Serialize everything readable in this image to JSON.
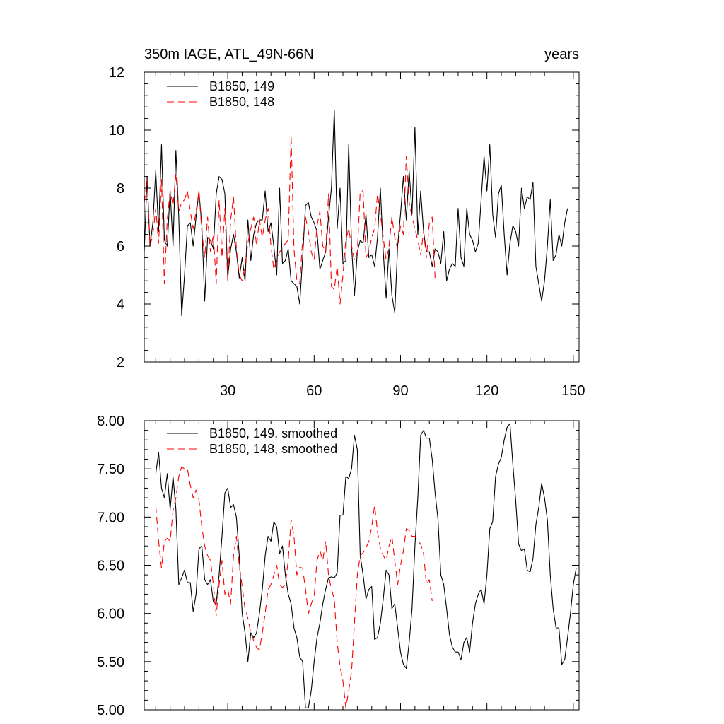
{
  "chart_data": [
    {
      "type": "line",
      "title": "350m IAGE, ATL_49N-66N",
      "units": "years",
      "xlabel": "",
      "ylabel": "",
      "xlim": [
        1,
        152
      ],
      "ylim": [
        2,
        12
      ],
      "xticks": [
        30,
        60,
        90,
        120,
        150
      ],
      "xtick_labels": [
        "30",
        "60",
        "90",
        "120",
        "150"
      ],
      "yticks": [
        2,
        4,
        6,
        8,
        10,
        12
      ],
      "ytick_labels": [
        "2",
        "4",
        "6",
        "8",
        "10",
        "12"
      ],
      "legend_position": "top-left",
      "series": [
        {
          "name": "B1850, 149",
          "color": "#000000",
          "dash": "solid",
          "x_start": 1,
          "values": [
            5.8,
            8.4,
            6.0,
            6.8,
            8.6,
            6.5,
            9.5,
            6.2,
            6.0,
            7.9,
            6.0,
            9.3,
            7.0,
            3.6,
            5.0,
            6.7,
            6.8,
            6.0,
            7.0,
            7.9,
            6.7,
            4.1,
            6.3,
            6.2,
            5.9,
            7.8,
            8.4,
            8.3,
            7.8,
            4.9,
            5.9,
            6.4,
            5.8,
            4.9,
            5.6,
            4.8,
            6.9,
            5.5,
            6.4,
            6.8,
            6.9,
            6.9,
            7.9,
            6.5,
            6.8,
            6.0,
            5.0,
            8.0,
            5.4,
            5.5,
            5.9,
            4.8,
            4.7,
            4.6,
            4.0,
            5.6,
            7.4,
            7.5,
            7.0,
            6.8,
            6.5,
            5.2,
            5.5,
            5.8,
            7.0,
            8.0,
            10.7,
            6.6,
            8.0,
            5.4,
            5.5,
            9.5,
            6.0,
            4.3,
            5.8,
            6.2,
            6.1,
            7.1,
            5.6,
            5.7,
            5.3,
            6.3,
            8.0,
            5.8,
            4.2,
            5.9,
            4.3,
            3.7,
            6.0,
            7.1,
            8.4,
            6.9,
            8.6,
            7.1,
            10.1,
            6.4,
            7.9,
            6.5,
            5.8,
            5.8,
            5.3,
            5.9,
            5.8,
            5.4,
            6.5,
            4.8,
            5.2,
            5.4,
            5.3,
            7.3,
            5.6,
            5.3,
            7.3,
            6.4,
            6.2,
            5.8,
            6.1,
            7.6,
            9.1,
            7.9,
            9.5,
            7.1,
            6.3,
            7.8,
            8.1,
            6.4,
            5.0,
            6.1,
            6.7,
            6.5,
            6.0,
            8.0,
            7.3,
            7.7,
            7.6,
            8.2,
            5.3,
            4.7,
            4.1,
            4.8,
            6.0,
            7.6,
            5.5,
            5.7,
            6.4,
            6.0,
            6.8,
            7.3
          ]
        },
        {
          "name": "B1850, 148",
          "color": "#ff0000",
          "dash": "dashed",
          "x_start": 1,
          "values": [
            7.5,
            8.3,
            6.0,
            6.4,
            7.3,
            6.1,
            8.3,
            4.7,
            6.9,
            7.9,
            7.4,
            8.5,
            7.2,
            7.5,
            7.6,
            7.9,
            7.2,
            6.6,
            7.2,
            7.9,
            6.5,
            5.6,
            7.0,
            5.8,
            6.4,
            4.7,
            7.6,
            5.6,
            7.3,
            4.8,
            6.9,
            7.7,
            5.9,
            5.0,
            4.8,
            5.3,
            6.1,
            6.6,
            7.0,
            6.0,
            6.9,
            6.3,
            6.9,
            7.3,
            6.0,
            5.2,
            5.5,
            5.8,
            5.9,
            6.1,
            6.2,
            9.8,
            5.9,
            4.8,
            4.7,
            6.2,
            7.0,
            6.5,
            5.8,
            5.5,
            6.7,
            7.2,
            6.0,
            5.8,
            7.8,
            4.6,
            4.5,
            5.3,
            4.0,
            5.0,
            6.2,
            6.6,
            6.0,
            5.5,
            5.8,
            7.9,
            7.9,
            5.6,
            5.8,
            6.3,
            6.6,
            7.8,
            7.1,
            6.3,
            5.5,
            6.0,
            7.0,
            6.3,
            5.9,
            6.7,
            6.4,
            9.1,
            7.5,
            7.0,
            6.6,
            6.2,
            5.7,
            6.5,
            5.6,
            6.8,
            7.0,
            4.9
          ]
        }
      ]
    },
    {
      "type": "line",
      "title": "",
      "xlabel": "",
      "ylabel": "",
      "xlim": [
        1,
        152
      ],
      "ylim": [
        5.0,
        8.0
      ],
      "xticks": [
        30,
        60,
        90,
        120,
        150
      ],
      "yticks": [
        5.0,
        5.5,
        6.0,
        6.5,
        7.0,
        7.5,
        8.0
      ],
      "ytick_labels": [
        "5.00",
        "5.50",
        "6.00",
        "6.50",
        "7.00",
        "7.50",
        "8.00"
      ],
      "legend_position": "top-left",
      "series": [
        {
          "name": "B1850, 149, smoothed",
          "color": "#000000",
          "dash": "solid",
          "x_start": 5,
          "values": [
            7.45,
            7.67,
            7.3,
            7.2,
            7.45,
            7.08,
            7.42,
            7.08,
            6.3,
            6.37,
            6.45,
            6.32,
            6.32,
            6.02,
            6.2,
            6.67,
            6.7,
            6.35,
            6.3,
            6.35,
            6.12,
            6.1,
            6.4,
            6.8,
            7.25,
            7.3,
            7.1,
            7.13,
            7.0,
            6.6,
            6.0,
            5.8,
            5.5,
            5.8,
            5.75,
            5.8,
            6.0,
            6.25,
            6.6,
            6.8,
            6.75,
            6.95,
            6.9,
            6.62,
            6.7,
            6.4,
            6.2,
            6.1,
            5.85,
            5.75,
            5.55,
            5.5,
            5.02,
            5.02,
            5.2,
            5.5,
            5.75,
            5.9,
            6.1,
            6.25,
            6.37,
            6.38,
            6.37,
            6.42,
            7.02,
            7.02,
            7.42,
            7.4,
            7.5,
            7.85,
            7.7,
            6.6,
            6.4,
            6.15,
            6.25,
            6.28,
            5.73,
            5.75,
            5.9,
            6.15,
            6.45,
            6.4,
            6.05,
            6.1,
            5.85,
            5.6,
            5.47,
            5.43,
            5.7,
            6.05,
            6.7,
            7.2,
            7.85,
            7.9,
            7.82,
            7.82,
            7.6,
            7.25,
            6.98,
            6.4,
            6.3,
            6.05,
            5.78,
            5.65,
            5.6,
            5.6,
            5.52,
            5.7,
            5.75,
            5.6,
            5.9,
            6.1,
            6.2,
            6.25,
            6.1,
            6.4,
            6.88,
            6.95,
            7.42,
            7.55,
            7.62,
            7.8,
            7.93,
            7.97,
            7.55,
            7.17,
            6.72,
            6.65,
            6.67,
            6.45,
            6.43,
            6.57,
            6.92,
            7.1,
            7.35,
            7.2,
            6.97,
            6.4,
            6.05,
            5.85,
            5.85,
            5.47,
            5.52,
            5.75,
            6.0,
            6.3,
            6.47
          ]
        },
        {
          "name": "B1850, 148, smoothed",
          "color": "#ff0000",
          "dash": "dashed",
          "x_start": 5,
          "values": [
            7.12,
            6.75,
            6.47,
            6.75,
            6.78,
            6.75,
            7.07,
            7.2,
            7.42,
            7.52,
            7.5,
            7.5,
            7.33,
            7.2,
            7.28,
            7.18,
            6.9,
            6.7,
            6.6,
            6.55,
            6.3,
            5.98,
            6.3,
            6.55,
            6.2,
            6.25,
            6.1,
            6.6,
            6.8,
            6.5,
            6.28,
            6.05,
            5.95,
            5.8,
            5.72,
            5.65,
            5.62,
            5.8,
            6.0,
            6.25,
            6.3,
            6.4,
            6.5,
            6.3,
            6.27,
            6.3,
            6.55,
            6.97,
            6.8,
            6.4,
            6.48,
            6.47,
            6.25,
            6.0,
            6.1,
            6.18,
            6.55,
            6.65,
            6.55,
            6.75,
            6.4,
            6.25,
            6.15,
            5.7,
            5.45,
            5.3,
            5.02,
            5.2,
            5.4,
            5.9,
            6.4,
            6.6,
            6.63,
            6.68,
            6.75,
            6.9,
            7.12,
            6.85,
            6.68,
            6.6,
            6.55,
            6.7,
            6.8,
            6.55,
            6.3,
            6.5,
            6.65,
            6.88,
            6.86,
            6.8,
            6.8,
            6.75,
            6.72,
            6.62,
            6.3,
            6.35,
            6.13
          ]
        }
      ]
    }
  ]
}
